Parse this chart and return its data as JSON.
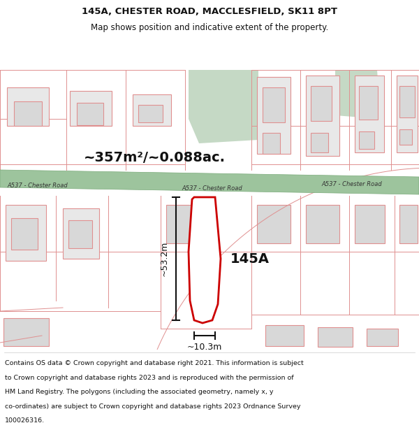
{
  "title_line1": "145A, CHESTER ROAD, MACCLESFIELD, SK11 8PT",
  "title_line2": "Map shows position and indicative extent of the property.",
  "area_text": "~357m²/~0.088ac.",
  "property_label": "145A",
  "road_name": "A537 - Chester Road",
  "dim_height": "~53.2m",
  "dim_width": "~10.3m",
  "footer_lines": [
    "Contains OS data © Crown copyright and database right 2021. This information is subject",
    "to Crown copyright and database rights 2023 and is reproduced with the permission of",
    "HM Land Registry. The polygons (including the associated geometry, namely x, y",
    "co-ordinates) are subject to Crown copyright and database rights 2023 Ordnance Survey",
    "100026316."
  ],
  "bg_color": "#ffffff",
  "map_bg": "#faf6f6",
  "road_fill": "#9dc49d",
  "road_edge": "#7aaa7a",
  "bldg_fill": "#e8e8e8",
  "bldg_edge": "#e09090",
  "plot_edge": "#e09090",
  "green_fill": "#c5d9c5",
  "prop_fill": "#ffffff",
  "prop_edge": "#cc0000",
  "dim_color": "#111111",
  "title_color": "#111111",
  "road_text": "#333333",
  "footer_color": "#111111",
  "title_fs": 9.5,
  "subtitle_fs": 8.5,
  "footer_fs": 6.8
}
